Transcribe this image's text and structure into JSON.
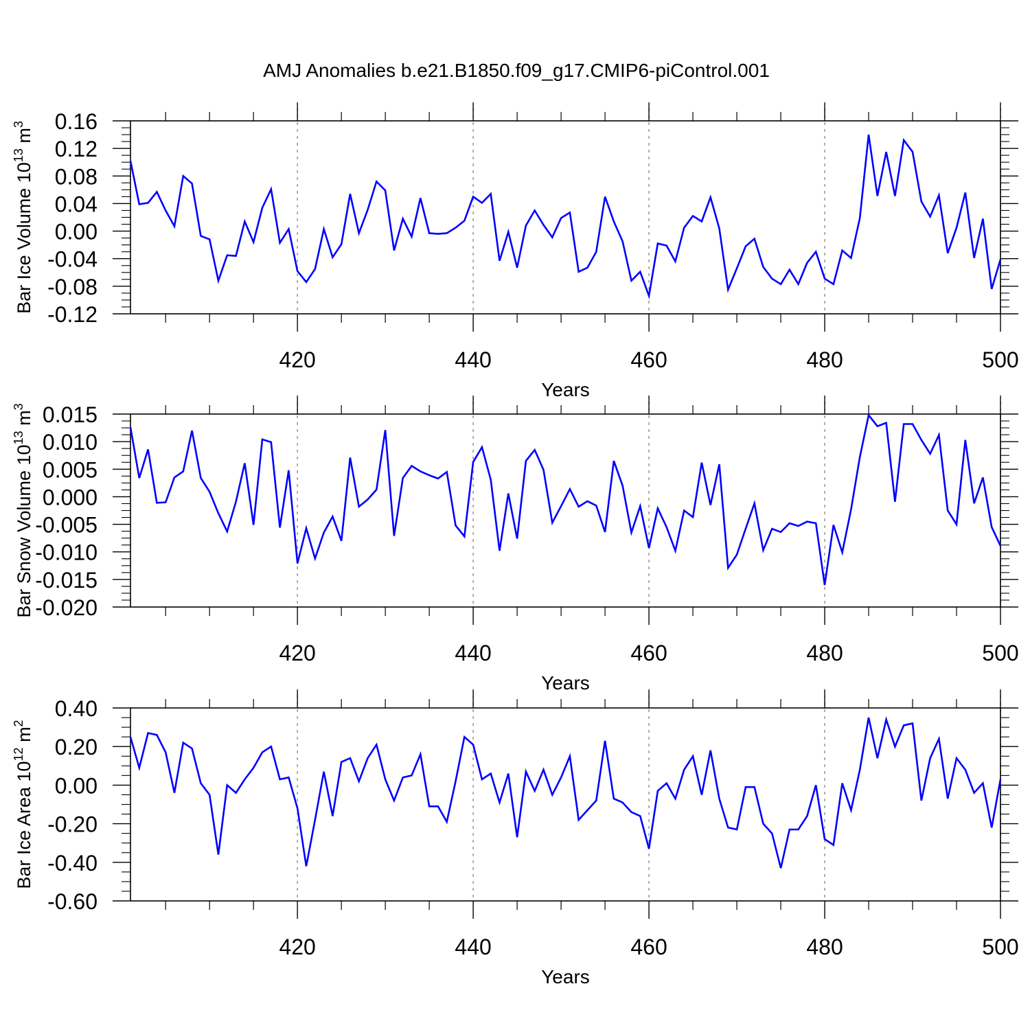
{
  "title": "AMJ Anomalies b.e21.B1850.f09_g17.CMIP6-piControl.001",
  "line_color": "#0000ff",
  "chart_data": [
    {
      "type": "line",
      "ylabel": "Bar Ice Volume 10",
      "ylabel_exp": "13",
      "ylabel_unit": " m",
      "ylabel_unit_exp": "3",
      "xlabel": "Years",
      "xlim": [
        401,
        500
      ],
      "ylim": [
        -0.12,
        0.16
      ],
      "yticks": [
        0.16,
        0.12,
        0.08,
        0.04,
        0.0,
        -0.04,
        -0.08,
        -0.12
      ],
      "ytick_labels": [
        "0.16",
        "0.12",
        "0.08",
        "0.04",
        "0.00",
        "-0.04",
        "-0.08",
        "-0.12"
      ],
      "xticks": [
        420,
        440,
        460,
        480,
        500
      ],
      "xtick_labels": [
        "420",
        "440",
        "460",
        "480",
        "500"
      ],
      "grid_x": true,
      "x_start": 401,
      "values": [
        0.102,
        0.039,
        0.041,
        0.057,
        0.03,
        0.007,
        0.08,
        0.069,
        -0.007,
        -0.012,
        -0.072,
        -0.035,
        -0.036,
        0.014,
        -0.016,
        0.034,
        0.061,
        -0.017,
        0.003,
        -0.058,
        -0.074,
        -0.055,
        0.003,
        -0.038,
        -0.019,
        0.054,
        -0.003,
        0.031,
        0.072,
        0.059,
        -0.028,
        0.018,
        -0.008,
        0.048,
        -0.003,
        -0.004,
        -0.003,
        0.005,
        0.015,
        0.05,
        0.041,
        0.054,
        -0.043,
        -0.001,
        -0.053,
        0.008,
        0.03,
        0.009,
        -0.009,
        0.019,
        0.027,
        -0.059,
        -0.053,
        -0.03,
        0.05,
        0.014,
        -0.015,
        -0.072,
        -0.059,
        -0.094,
        -0.018,
        -0.021,
        -0.044,
        0.005,
        0.022,
        0.014,
        0.049,
        0.004,
        -0.085,
        -0.054,
        -0.022,
        -0.011,
        -0.052,
        -0.069,
        -0.077,
        -0.056,
        -0.077,
        -0.046,
        -0.03,
        -0.069,
        -0.077,
        -0.028,
        -0.039,
        0.019,
        0.14,
        0.051,
        0.115,
        0.051,
        0.132,
        0.115,
        0.043,
        0.021,
        0.052,
        -0.032,
        0.005,
        0.056,
        -0.039,
        0.018,
        -0.084,
        -0.041
      ]
    },
    {
      "type": "line",
      "ylabel": "Bar Snow Volume 10",
      "ylabel_exp": "13",
      "ylabel_unit": " m",
      "ylabel_unit_exp": "3",
      "xlabel": "Years",
      "xlim": [
        401,
        500
      ],
      "ylim": [
        -0.02,
        0.015
      ],
      "yticks": [
        0.015,
        0.01,
        0.005,
        0.0,
        -0.005,
        -0.01,
        -0.015,
        -0.02
      ],
      "ytick_labels": [
        "0.015",
        "0.010",
        "0.005",
        "0.000",
        "-0.005",
        "-0.010",
        "-0.015",
        "-0.020"
      ],
      "xticks": [
        420,
        440,
        460,
        480,
        500
      ],
      "xtick_labels": [
        "420",
        "440",
        "460",
        "480",
        "500"
      ],
      "grid_x": true,
      "x_start": 401,
      "values": [
        0.0126,
        0.0034,
        0.0086,
        -0.0011,
        -0.001,
        0.0035,
        0.0046,
        0.012,
        0.0034,
        0.0009,
        -0.003,
        -0.0063,
        -0.0009,
        0.0061,
        -0.0051,
        0.0104,
        0.0099,
        -0.0056,
        0.0048,
        -0.0121,
        -0.0057,
        -0.0112,
        -0.0065,
        -0.0036,
        -0.008,
        0.0071,
        -0.0018,
        -0.0005,
        0.0013,
        0.0121,
        -0.0071,
        0.0034,
        0.0056,
        0.0046,
        0.0039,
        0.0033,
        0.0045,
        -0.0052,
        -0.0072,
        0.0063,
        0.009,
        0.0031,
        -0.0098,
        0.0006,
        -0.0076,
        0.0065,
        0.0085,
        0.0049,
        -0.0047,
        -0.0017,
        0.0014,
        -0.0018,
        -0.0008,
        -0.0016,
        -0.0064,
        0.0065,
        0.002,
        -0.0065,
        -0.0017,
        -0.0093,
        -0.0021,
        -0.0055,
        -0.0098,
        -0.0025,
        -0.0037,
        0.0062,
        -0.0015,
        0.0059,
        -0.0129,
        -0.0105,
        -0.0058,
        -0.0012,
        -0.0097,
        -0.0058,
        -0.0064,
        -0.0048,
        -0.0053,
        -0.0045,
        -0.0048,
        -0.016,
        -0.0051,
        -0.0101,
        -0.0023,
        0.0072,
        0.0148,
        0.0128,
        0.0134,
        -0.0009,
        0.0132,
        0.0132,
        0.0103,
        0.0078,
        0.0112,
        -0.0025,
        -0.005,
        0.0103,
        -0.0012,
        0.0035,
        -0.0055,
        -0.0089
      ]
    },
    {
      "type": "line",
      "ylabel": "Bar Ice Area 10",
      "ylabel_exp": "12",
      "ylabel_unit": " m",
      "ylabel_unit_exp": "2",
      "xlabel": "Years",
      "xlim": [
        401,
        500
      ],
      "ylim": [
        -0.6,
        0.4
      ],
      "yticks": [
        0.4,
        0.2,
        0.0,
        -0.2,
        -0.4,
        -0.6
      ],
      "ytick_labels": [
        "0.40",
        "0.20",
        "0.00",
        "-0.20",
        "-0.40",
        "-0.60"
      ],
      "xticks": [
        420,
        440,
        460,
        480,
        500
      ],
      "xtick_labels": [
        "420",
        "440",
        "460",
        "480",
        "500"
      ],
      "grid_x": true,
      "x_start": 401,
      "values": [
        0.25,
        0.09,
        0.27,
        0.26,
        0.17,
        -0.04,
        0.22,
        0.19,
        0.01,
        -0.05,
        -0.36,
        0.0,
        -0.04,
        0.03,
        0.09,
        0.17,
        0.2,
        0.03,
        0.04,
        -0.12,
        -0.42,
        -0.18,
        0.07,
        -0.16,
        0.12,
        0.14,
        0.02,
        0.14,
        0.21,
        0.03,
        -0.08,
        0.04,
        0.05,
        0.16,
        -0.11,
        -0.11,
        -0.19,
        0.02,
        0.25,
        0.21,
        0.03,
        0.06,
        -0.09,
        0.06,
        -0.27,
        0.07,
        -0.03,
        0.08,
        -0.05,
        0.04,
        0.15,
        -0.18,
        -0.13,
        -0.08,
        0.23,
        -0.07,
        -0.09,
        -0.14,
        -0.16,
        -0.33,
        -0.03,
        0.01,
        -0.07,
        0.08,
        0.15,
        -0.05,
        0.18,
        -0.07,
        -0.22,
        -0.23,
        -0.01,
        -0.01,
        -0.2,
        -0.25,
        -0.43,
        -0.23,
        -0.23,
        -0.16,
        0.0,
        -0.28,
        -0.31,
        0.01,
        -0.13,
        0.08,
        0.35,
        0.14,
        0.34,
        0.2,
        0.31,
        0.32,
        -0.08,
        0.14,
        0.24,
        -0.07,
        0.14,
        0.08,
        -0.04,
        0.01,
        -0.22,
        0.03
      ]
    }
  ]
}
